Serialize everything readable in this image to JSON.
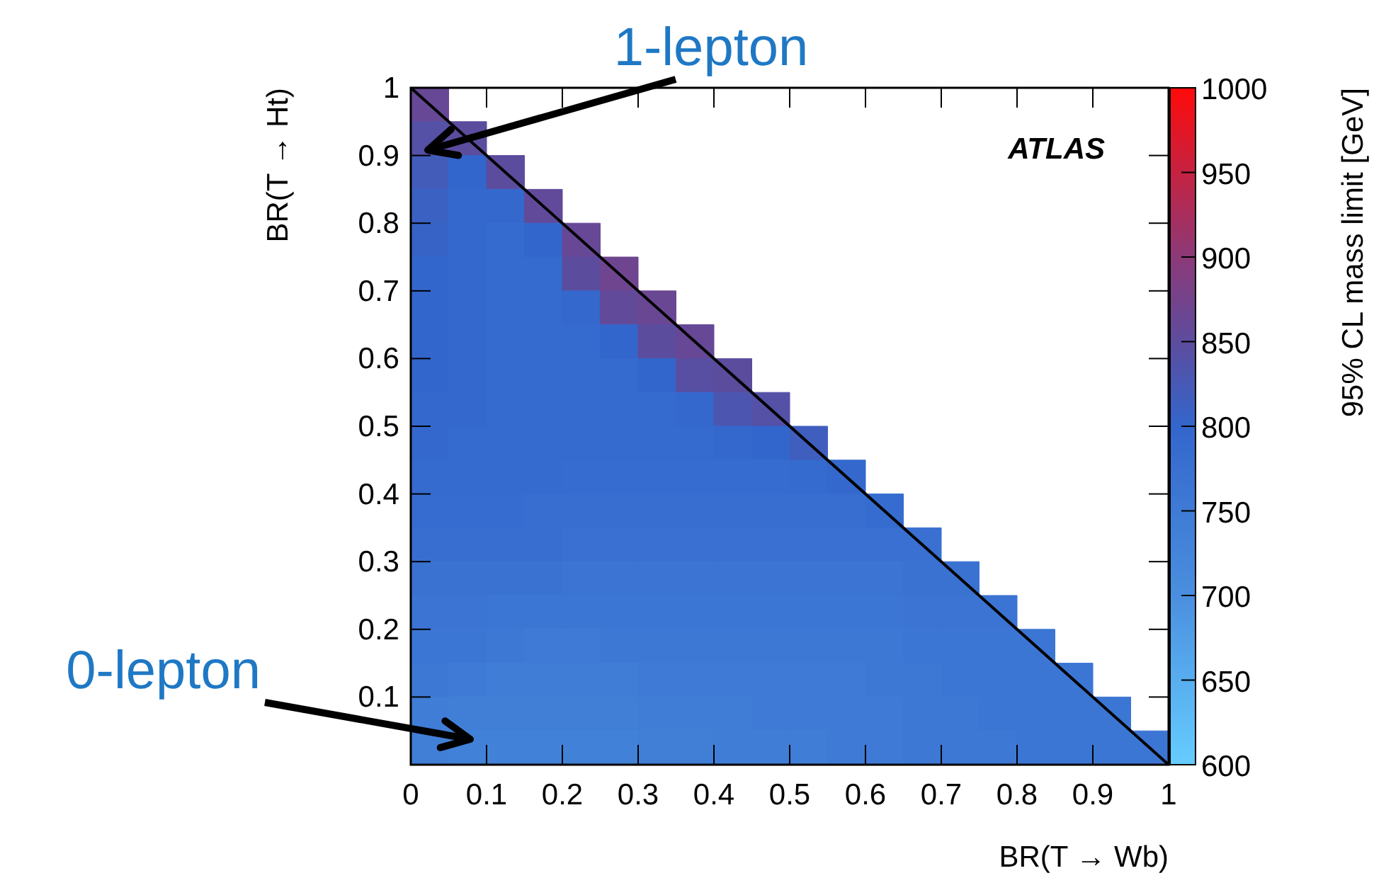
{
  "chart_data": {
    "type": "heatmap",
    "xlabel": "BR(T → Wb)",
    "ylabel": "BR(T → Ht)",
    "clabel": "95% CL mass limit [GeV]",
    "annotations": [
      "1-lepton",
      "0-lepton",
      "ATLAS"
    ],
    "x": [
      0.025,
      0.075,
      0.125,
      0.175,
      0.225,
      0.275,
      0.325,
      0.375,
      0.425,
      0.475,
      0.525,
      0.575,
      0.625,
      0.675,
      0.725,
      0.775,
      0.825,
      0.875,
      0.925,
      0.975
    ],
    "y": [
      0.975,
      0.925,
      0.875,
      0.825,
      0.775,
      0.725,
      0.675,
      0.625,
      0.575,
      0.525,
      0.475,
      0.425,
      0.375,
      0.325,
      0.275,
      0.225,
      0.175,
      0.125,
      0.075,
      0.025
    ],
    "xlim": [
      0,
      1
    ],
    "xticks": [
      0,
      0.1,
      0.2,
      0.3,
      0.4,
      0.5,
      0.6,
      0.7,
      0.8,
      0.9,
      1
    ],
    "ylim": [
      0,
      1
    ],
    "yticks": [
      {
        "value": 0,
        "label": null
      },
      0.1,
      0.2,
      0.3,
      0.4,
      0.5,
      0.6,
      0.7,
      0.8,
      0.9,
      1
    ],
    "series": [
      {
        "type": "line",
        "x": [
          0,
          1
        ],
        "values": [
          1,
          0
        ],
        "color": "#000000"
      }
    ],
    "clim": [
      600,
      1000
    ],
    "cticks": [
      600,
      650,
      700,
      750,
      800,
      850,
      900,
      950,
      1000
    ],
    "cells": [
      [
        860,
        null,
        null,
        null,
        null,
        null,
        null,
        null,
        null,
        null,
        null,
        null,
        null,
        null,
        null,
        null,
        null,
        null,
        null,
        null
      ],
      [
        840,
        850,
        null,
        null,
        null,
        null,
        null,
        null,
        null,
        null,
        null,
        null,
        null,
        null,
        null,
        null,
        null,
        null,
        null,
        null
      ],
      [
        820,
        800,
        850,
        null,
        null,
        null,
        null,
        null,
        null,
        null,
        null,
        null,
        null,
        null,
        null,
        null,
        null,
        null,
        null,
        null
      ],
      [
        810,
        795,
        795,
        855,
        null,
        null,
        null,
        null,
        null,
        null,
        null,
        null,
        null,
        null,
        null,
        null,
        null,
        null,
        null,
        null
      ],
      [
        805,
        795,
        790,
        800,
        860,
        null,
        null,
        null,
        null,
        null,
        null,
        null,
        null,
        null,
        null,
        null,
        null,
        null,
        null,
        null
      ],
      [
        800,
        795,
        790,
        790,
        850,
        870,
        null,
        null,
        null,
        null,
        null,
        null,
        null,
        null,
        null,
        null,
        null,
        null,
        null,
        null
      ],
      [
        800,
        795,
        790,
        790,
        795,
        855,
        865,
        null,
        null,
        null,
        null,
        null,
        null,
        null,
        null,
        null,
        null,
        null,
        null,
        null
      ],
      [
        800,
        795,
        790,
        790,
        790,
        800,
        850,
        860,
        null,
        null,
        null,
        null,
        null,
        null,
        null,
        null,
        null,
        null,
        null,
        null
      ],
      [
        800,
        795,
        790,
        790,
        790,
        790,
        800,
        845,
        850,
        null,
        null,
        null,
        null,
        null,
        null,
        null,
        null,
        null,
        null,
        null
      ],
      [
        795,
        795,
        790,
        790,
        790,
        790,
        790,
        795,
        830,
        840,
        null,
        null,
        null,
        null,
        null,
        null,
        null,
        null,
        null,
        null
      ],
      [
        795,
        790,
        790,
        790,
        790,
        790,
        790,
        790,
        795,
        800,
        815,
        null,
        null,
        null,
        null,
        null,
        null,
        null,
        null,
        null
      ],
      [
        790,
        790,
        790,
        790,
        785,
        785,
        785,
        785,
        785,
        785,
        790,
        795,
        null,
        null,
        null,
        null,
        null,
        null,
        null,
        null
      ],
      [
        785,
        785,
        785,
        780,
        780,
        780,
        780,
        780,
        780,
        780,
        780,
        780,
        785,
        null,
        null,
        null,
        null,
        null,
        null,
        null
      ],
      [
        780,
        780,
        780,
        780,
        775,
        775,
        775,
        775,
        775,
        775,
        775,
        775,
        775,
        775,
        null,
        null,
        null,
        null,
        null,
        null
      ],
      [
        770,
        770,
        770,
        770,
        765,
        765,
        765,
        765,
        765,
        765,
        765,
        765,
        765,
        770,
        770,
        null,
        null,
        null,
        null,
        null
      ],
      [
        765,
        765,
        760,
        760,
        760,
        760,
        760,
        760,
        760,
        760,
        760,
        760,
        760,
        765,
        765,
        765,
        null,
        null,
        null,
        null
      ],
      [
        760,
        760,
        755,
        750,
        750,
        755,
        755,
        755,
        755,
        755,
        755,
        755,
        755,
        760,
        760,
        760,
        760,
        null,
        null,
        null
      ],
      [
        755,
        750,
        745,
        745,
        745,
        745,
        750,
        750,
        750,
        750,
        750,
        750,
        755,
        755,
        760,
        760,
        760,
        760,
        null,
        null
      ],
      [
        745,
        740,
        740,
        740,
        740,
        740,
        745,
        745,
        745,
        750,
        750,
        750,
        750,
        755,
        755,
        760,
        760,
        760,
        760,
        null
      ],
      [
        740,
        735,
        735,
        735,
        735,
        735,
        740,
        740,
        745,
        745,
        745,
        750,
        750,
        755,
        755,
        755,
        760,
        760,
        760,
        760
      ]
    ]
  }
}
